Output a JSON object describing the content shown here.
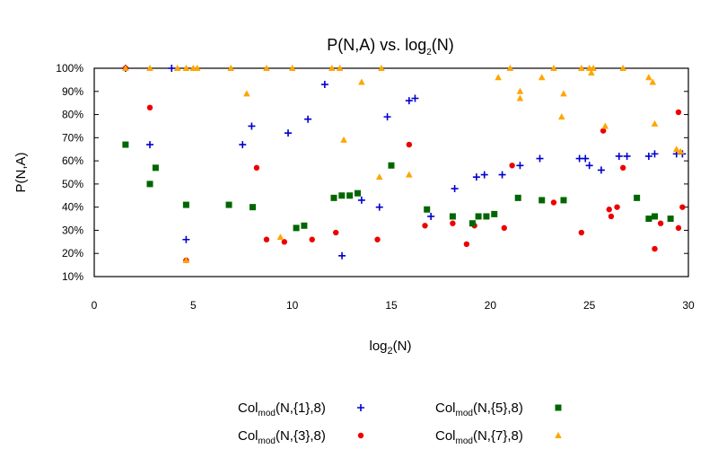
{
  "chart_data": {
    "type": "scatter",
    "title_main": "P(N,A) vs. log",
    "title_sub": "2",
    "title_tail": "(N)",
    "xlabel_main": "log",
    "xlabel_sub": "2",
    "xlabel_tail": "(N)",
    "ylabel": "P(N,A)",
    "xlim": [
      0,
      30
    ],
    "ylim": [
      10,
      100
    ],
    "x_ticks": [
      0,
      5,
      10,
      15,
      20,
      25,
      30
    ],
    "y_ticks": [
      10,
      20,
      30,
      40,
      50,
      60,
      70,
      80,
      90,
      100
    ],
    "y_tick_suffix": "%",
    "grid": false,
    "legend_position": "bottom",
    "series": [
      {
        "label_main": "Col",
        "label_sub": "mod",
        "label_tail": "(N,{1},8)",
        "marker": "plus",
        "color": "#0000cc",
        "points": [
          [
            1.58,
            100
          ],
          [
            2.81,
            67
          ],
          [
            3.91,
            100
          ],
          [
            4.64,
            26
          ],
          [
            7.49,
            67
          ],
          [
            7.95,
            75
          ],
          [
            9.79,
            72
          ],
          [
            10.79,
            78
          ],
          [
            11.64,
            93
          ],
          [
            12.51,
            19
          ],
          [
            13.5,
            43
          ],
          [
            14.4,
            40
          ],
          [
            14.8,
            79
          ],
          [
            15.9,
            86
          ],
          [
            16.2,
            87
          ],
          [
            17.0,
            36
          ],
          [
            18.2,
            48
          ],
          [
            19.3,
            53
          ],
          [
            19.7,
            54
          ],
          [
            20.6,
            54
          ],
          [
            21.5,
            58
          ],
          [
            22.5,
            61
          ],
          [
            24.5,
            61
          ],
          [
            24.8,
            61
          ],
          [
            25.0,
            58
          ],
          [
            25.6,
            56
          ],
          [
            26.5,
            62
          ],
          [
            26.9,
            62
          ],
          [
            28.0,
            62
          ],
          [
            28.3,
            63
          ],
          [
            29.4,
            63
          ],
          [
            29.7,
            63
          ]
        ]
      },
      {
        "label_main": "Col",
        "label_sub": "mod",
        "label_tail": "(N,{3},8)",
        "marker": "circle",
        "color": "#ee0000",
        "points": [
          [
            1.58,
            100
          ],
          [
            2.81,
            83
          ],
          [
            4.64,
            17
          ],
          [
            8.2,
            57
          ],
          [
            8.7,
            26
          ],
          [
            9.6,
            25
          ],
          [
            11.0,
            26
          ],
          [
            12.2,
            29
          ],
          [
            14.3,
            26
          ],
          [
            15.9,
            67
          ],
          [
            16.7,
            32
          ],
          [
            18.1,
            33
          ],
          [
            18.8,
            24
          ],
          [
            19.2,
            32
          ],
          [
            20.7,
            31
          ],
          [
            21.1,
            58
          ],
          [
            23.2,
            42
          ],
          [
            24.6,
            29
          ],
          [
            25.7,
            73
          ],
          [
            26.0,
            39
          ],
          [
            26.1,
            36
          ],
          [
            26.4,
            40
          ],
          [
            26.7,
            57
          ],
          [
            28.3,
            22
          ],
          [
            28.6,
            33
          ],
          [
            29.5,
            81
          ],
          [
            29.5,
            31
          ],
          [
            29.7,
            40
          ]
        ]
      },
      {
        "label_main": "Col",
        "label_sub": "mod",
        "label_tail": "(N,{5},8)",
        "marker": "square",
        "color": "#006600",
        "points": [
          [
            1.58,
            67
          ],
          [
            2.81,
            50
          ],
          [
            3.1,
            57
          ],
          [
            4.64,
            41
          ],
          [
            6.8,
            41
          ],
          [
            8.0,
            40
          ],
          [
            10.2,
            31
          ],
          [
            10.6,
            32
          ],
          [
            12.1,
            44
          ],
          [
            12.5,
            45
          ],
          [
            12.9,
            45
          ],
          [
            13.3,
            46
          ],
          [
            15.0,
            58
          ],
          [
            16.8,
            39
          ],
          [
            18.1,
            36
          ],
          [
            19.1,
            33
          ],
          [
            19.4,
            36
          ],
          [
            19.8,
            36
          ],
          [
            20.2,
            37
          ],
          [
            21.4,
            44
          ],
          [
            22.6,
            43
          ],
          [
            23.7,
            43
          ],
          [
            27.4,
            44
          ],
          [
            28.0,
            35
          ],
          [
            28.3,
            36
          ],
          [
            29.1,
            35
          ]
        ]
      },
      {
        "label_main": "Col",
        "label_sub": "mod",
        "label_tail": "(N,{7},8)",
        "marker": "triangle",
        "color": "#ffa500",
        "points": [
          [
            1.58,
            100
          ],
          [
            2.81,
            100
          ],
          [
            4.2,
            100
          ],
          [
            4.64,
            100
          ],
          [
            4.64,
            17
          ],
          [
            5.0,
            100
          ],
          [
            5.2,
            100
          ],
          [
            6.9,
            100
          ],
          [
            7.7,
            89
          ],
          [
            8.7,
            100
          ],
          [
            9.4,
            27
          ],
          [
            10.0,
            100
          ],
          [
            12.0,
            100
          ],
          [
            12.4,
            100
          ],
          [
            12.6,
            69
          ],
          [
            13.5,
            94
          ],
          [
            14.4,
            53
          ],
          [
            14.5,
            100
          ],
          [
            15.9,
            54
          ],
          [
            20.4,
            96
          ],
          [
            21.0,
            100
          ],
          [
            21.5,
            90
          ],
          [
            21.5,
            87
          ],
          [
            22.6,
            96
          ],
          [
            23.2,
            100
          ],
          [
            23.6,
            79
          ],
          [
            23.7,
            89
          ],
          [
            24.6,
            100
          ],
          [
            25.0,
            100
          ],
          [
            25.1,
            98
          ],
          [
            25.2,
            100
          ],
          [
            25.8,
            75
          ],
          [
            26.7,
            100
          ],
          [
            28.0,
            96
          ],
          [
            28.2,
            94
          ],
          [
            28.3,
            76
          ],
          [
            29.4,
            65
          ],
          [
            29.6,
            64
          ]
        ]
      }
    ]
  }
}
